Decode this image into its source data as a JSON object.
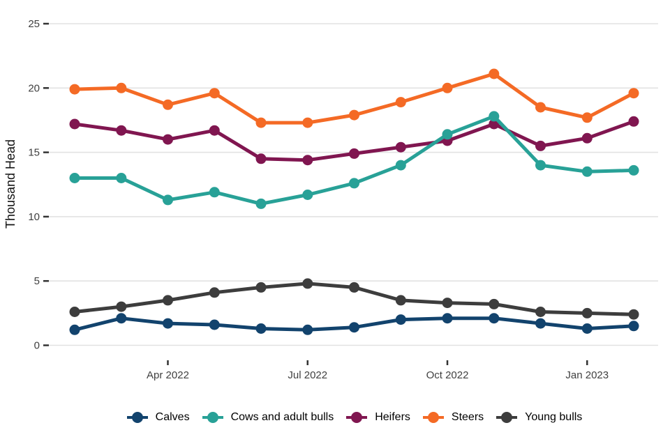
{
  "chart_data": {
    "type": "line",
    "title": "",
    "xlabel": "",
    "ylabel": "Thousand Head",
    "ylim": [
      0,
      25
    ],
    "y_ticks": [
      0,
      5,
      10,
      15,
      20,
      25
    ],
    "x": [
      "Feb 2022",
      "Mar 2022",
      "Apr 2022",
      "May 2022",
      "Jun 2022",
      "Jul 2022",
      "Aug 2022",
      "Sep 2022",
      "Oct 2022",
      "Nov 2022",
      "Dec 2022",
      "Jan 2023",
      "Feb 2023"
    ],
    "x_tick_indices": [
      2,
      5,
      8,
      11
    ],
    "x_tick_labels": [
      "Apr 2022",
      "Jul 2022",
      "Oct 2022",
      "Jan 2023"
    ],
    "grid": "horizontal",
    "legend_position": "bottom",
    "axis_text_color": "#404040",
    "grid_color": "#e2e2e2",
    "tick_color": "#333333",
    "series": [
      {
        "name": "Calves",
        "color": "#12436D",
        "values": [
          1.2,
          2.1,
          1.7,
          1.6,
          1.3,
          1.2,
          1.4,
          2.0,
          2.1,
          2.1,
          1.7,
          1.3,
          1.5
        ]
      },
      {
        "name": "Cows and adult bulls",
        "color": "#28A197",
        "values": [
          13.0,
          13.0,
          11.3,
          11.9,
          11.0,
          11.7,
          12.6,
          14.0,
          16.4,
          17.8,
          14.0,
          13.5,
          13.6
        ]
      },
      {
        "name": "Heifers",
        "color": "#801650",
        "values": [
          17.2,
          16.7,
          16.0,
          16.7,
          14.5,
          14.4,
          14.9,
          15.4,
          15.9,
          17.2,
          15.5,
          16.1,
          17.4
        ]
      },
      {
        "name": "Steers",
        "color": "#F46A25",
        "values": [
          19.9,
          20.0,
          18.7,
          19.6,
          17.3,
          17.3,
          17.9,
          18.9,
          20.0,
          21.1,
          18.5,
          17.7,
          19.6
        ]
      },
      {
        "name": "Young bulls",
        "color": "#3D3D3D",
        "values": [
          2.6,
          3.0,
          3.5,
          4.1,
          4.5,
          4.8,
          4.5,
          3.5,
          3.3,
          3.2,
          2.6,
          2.5,
          2.4
        ]
      }
    ]
  }
}
